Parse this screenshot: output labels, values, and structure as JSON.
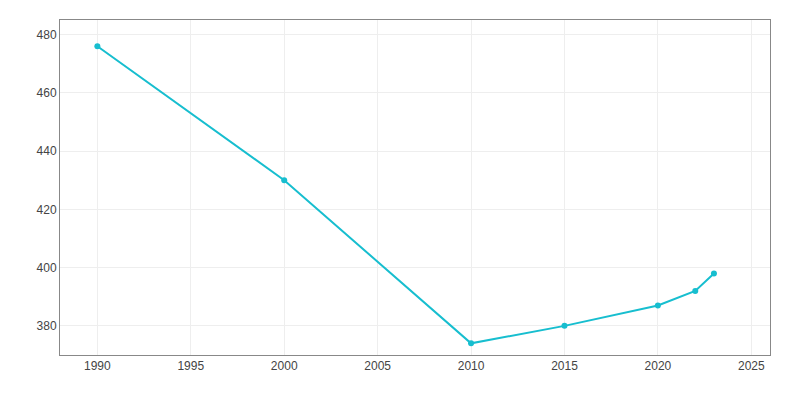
{
  "chart_data": {
    "type": "line",
    "x": [
      1990,
      2000,
      2010,
      2015,
      2020,
      2022,
      2023
    ],
    "values": [
      476,
      430,
      374,
      380,
      387,
      392,
      398
    ],
    "color": "#17becf",
    "marker": "circle",
    "line_style": "solid",
    "xlim": [
      1988,
      2026
    ],
    "ylim": [
      370,
      485
    ],
    "xticks": [
      1990,
      1995,
      2000,
      2005,
      2010,
      2015,
      2020,
      2025
    ],
    "yticks": [
      380,
      400,
      420,
      440,
      460,
      480
    ],
    "grid": true
  }
}
